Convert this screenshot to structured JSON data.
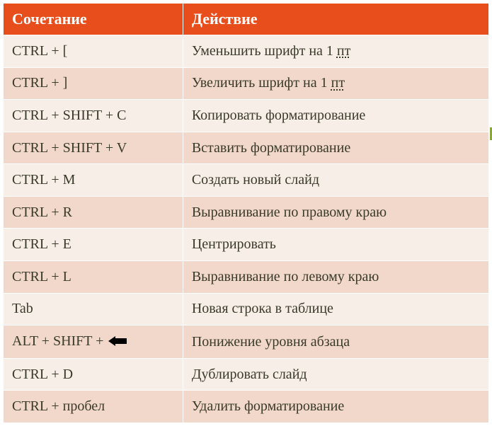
{
  "table": {
    "columns": [
      "Сочетание",
      "Действие"
    ],
    "header_bg": "#e84e1c",
    "header_text_color": "#ffffff",
    "row_bg_odd": "#f7eee7",
    "row_bg_even": "#f1d8ca",
    "cell_border": "#ffffff",
    "text_color": "#3a3a2a",
    "font_family": "Georgia, serif",
    "header_fontsize": 22,
    "cell_fontsize": 20,
    "col_widths_pct": [
      37,
      63
    ],
    "rows": [
      {
        "shortcut": "CTRL + [",
        "action_pre": "Уменьшить шрифт на 1 ",
        "underlined": "пт",
        "action_post": ""
      },
      {
        "shortcut": "CTRL + ]",
        "action_pre": "Увеличить шрифт на 1 ",
        "underlined": "пт",
        "action_post": ""
      },
      {
        "shortcut": "CTRL + SHIFT + C",
        "action_pre": "Копировать форматирование",
        "underlined": "",
        "action_post": ""
      },
      {
        "shortcut": "CTRL + SHIFT + V",
        "action_pre": "Вставить форматирование",
        "underlined": "",
        "action_post": ""
      },
      {
        "shortcut": "CTRL + M",
        "action_pre": "Создать новый слайд",
        "underlined": "",
        "action_post": ""
      },
      {
        "shortcut": "CTRL + R",
        "action_pre": "Выравнивание по правому краю",
        "underlined": "",
        "action_post": ""
      },
      {
        "shortcut": "CTRL + E",
        "action_pre": "Центрировать",
        "underlined": "",
        "action_post": ""
      },
      {
        "shortcut": "CTRL + L",
        "action_pre": "Выравнивание по левому краю",
        "underlined": "",
        "action_post": ""
      },
      {
        "shortcut": "Tab",
        "action_pre": "Новая строка в таблице",
        "underlined": "",
        "action_post": ""
      },
      {
        "shortcut": "ALT + SHIFT + ",
        "shortcut_icon": "arrow-left",
        "action_pre": "Понижение уровня абзаца",
        "underlined": "",
        "action_post": ""
      },
      {
        "shortcut": "CTRL + D",
        "action_pre": "Дублировать слайд",
        "underlined": "",
        "action_post": ""
      },
      {
        "shortcut": "CTRL + пробел",
        "action_pre": "Удалить форматирование",
        "underlined": "",
        "action_post": ""
      }
    ],
    "icons": {
      "arrow-left": {
        "color": "#000000",
        "width": 26,
        "height": 14
      }
    }
  }
}
